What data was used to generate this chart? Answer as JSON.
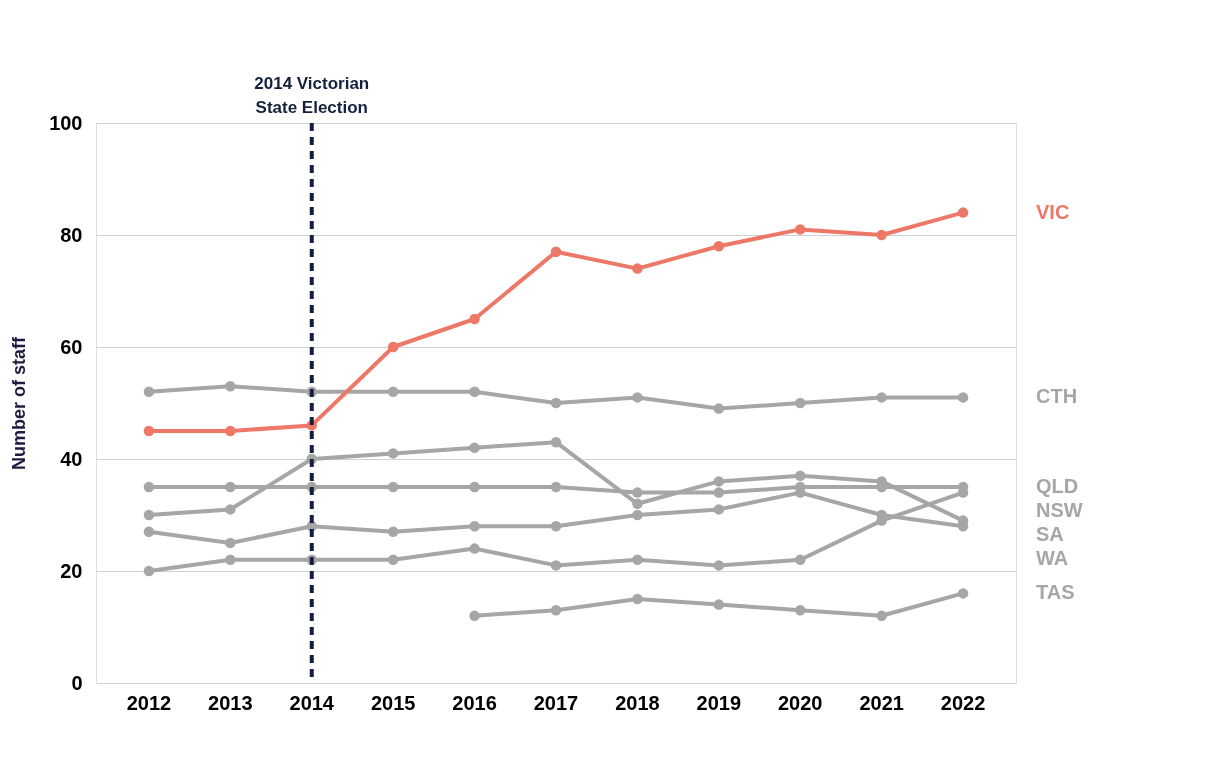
{
  "chart_data": {
    "type": "line",
    "categories": [
      "2012",
      "2013",
      "2014",
      "2015",
      "2016",
      "2017",
      "2018",
      "2019",
      "2020",
      "2021",
      "2022"
    ],
    "series": [
      {
        "name": "CTH",
        "color": "#a6a6a6",
        "values": [
          52,
          53,
          52,
          52,
          52,
          50,
          51,
          49,
          50,
          51,
          51
        ]
      },
      {
        "name": "QLD",
        "color": "#a6a6a6",
        "values": [
          35,
          35,
          35,
          35,
          35,
          35,
          34,
          34,
          35,
          35,
          35
        ]
      },
      {
        "name": "NSW",
        "color": "#a6a6a6",
        "values": [
          20,
          22,
          22,
          22,
          24,
          21,
          22,
          21,
          22,
          29,
          34
        ]
      },
      {
        "name": "SA",
        "color": "#a6a6a6",
        "values": [
          30,
          31,
          40,
          41,
          42,
          43,
          32,
          36,
          37,
          36,
          29
        ]
      },
      {
        "name": "WA",
        "color": "#a6a6a6",
        "values": [
          27,
          25,
          28,
          27,
          28,
          28,
          30,
          31,
          34,
          30,
          28
        ]
      },
      {
        "name": "TAS",
        "color": "#a6a6a6",
        "values": [
          null,
          null,
          null,
          null,
          12,
          13,
          15,
          14,
          13,
          12,
          16
        ]
      },
      {
        "name": "VIC",
        "color": "#ee7867",
        "values": [
          45,
          45,
          46,
          60,
          65,
          77,
          74,
          78,
          81,
          80,
          84
        ]
      }
    ],
    "ylabel": "Number of staff",
    "ylim": [
      0,
      100
    ],
    "yticks": [
      0,
      20,
      40,
      60,
      80,
      100
    ],
    "grid": "y",
    "marker": "circle",
    "line_style": "solid",
    "ref_lines": [
      {
        "axis": "x",
        "value": "2014",
        "label": "2014 Victorian State Election",
        "color": "#14213d",
        "line_style": "dashed"
      }
    ]
  }
}
